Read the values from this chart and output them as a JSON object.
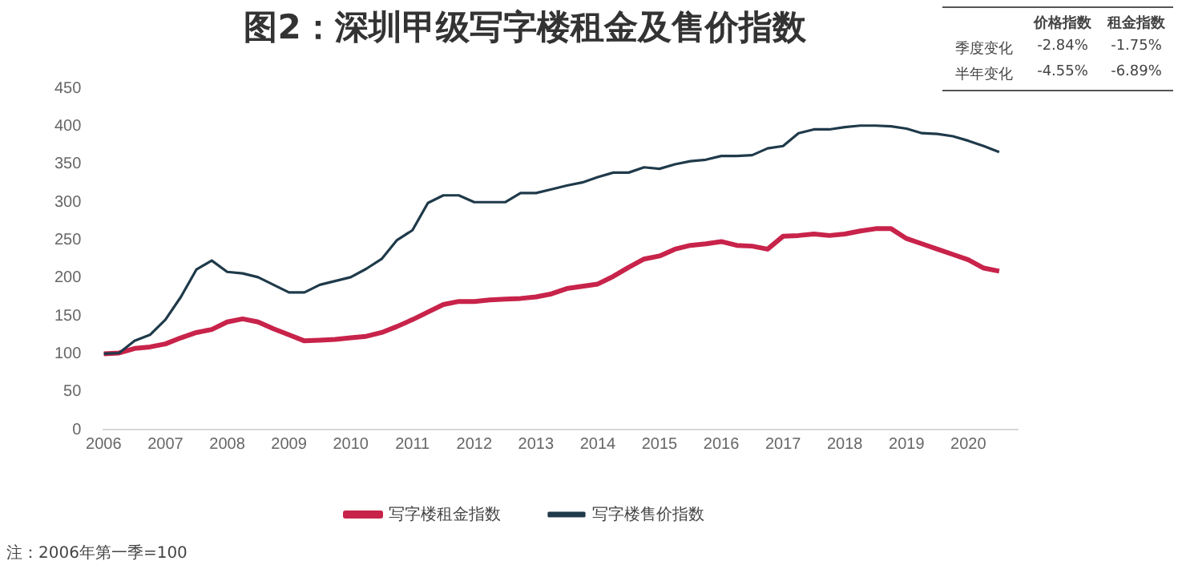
{
  "chart_data": {
    "type": "line",
    "title": "图2：深圳甲级写字楼租金及售价指数",
    "x": [
      2006,
      2006.25,
      2006.5,
      2006.75,
      2007,
      2007.25,
      2007.5,
      2007.75,
      2008,
      2008.25,
      2008.5,
      2008.75,
      2009,
      2009.25,
      2009.5,
      2009.75,
      2010,
      2010.25,
      2010.5,
      2010.75,
      2011,
      2011.25,
      2011.5,
      2011.75,
      2012,
      2012.25,
      2012.5,
      2012.75,
      2013,
      2013.25,
      2013.5,
      2013.75,
      2014,
      2014.25,
      2014.5,
      2014.75,
      2015,
      2015.25,
      2015.5,
      2015.75,
      2016,
      2016.25,
      2016.5,
      2016.75,
      2017,
      2017.25,
      2017.5,
      2017.75,
      2018,
      2018.25,
      2018.5,
      2018.75,
      2019,
      2019.25,
      2019.5,
      2019.75,
      2020,
      2020.25,
      2020.5
    ],
    "series": [
      {
        "name": "写字楼租金指数",
        "color": "#c8234a",
        "values": [
          100,
          101,
          107,
          109,
          113,
          121,
          128,
          132,
          142,
          146,
          142,
          133,
          125,
          117,
          118,
          119,
          121,
          123,
          128,
          136,
          145,
          155,
          165,
          169,
          169,
          171,
          172,
          173,
          175,
          179,
          186,
          189,
          192,
          202,
          214,
          225,
          229,
          238,
          243,
          245,
          248,
          243,
          242,
          238,
          255,
          256,
          258,
          256,
          258,
          262,
          265,
          265,
          252,
          245,
          238,
          231,
          224,
          213,
          209
        ]
      },
      {
        "name": "写字楼售价指数",
        "color": "#1f3a4a",
        "values": [
          100,
          101,
          117,
          125,
          145,
          175,
          211,
          223,
          208,
          206,
          201,
          191,
          181,
          181,
          191,
          196,
          201,
          212,
          225,
          250,
          263,
          299,
          309,
          309,
          300,
          300,
          300,
          312,
          312,
          317,
          322,
          326,
          333,
          339,
          339,
          346,
          344,
          350,
          354,
          356,
          361,
          361,
          362,
          371,
          374,
          391,
          396,
          396,
          399,
          401,
          401,
          400,
          397,
          391,
          390,
          387,
          381,
          374,
          366
        ]
      }
    ],
    "xlim": [
      2006,
      2020.8
    ],
    "xticks": [
      2006,
      2007,
      2008,
      2009,
      2010,
      2011,
      2012,
      2013,
      2014,
      2015,
      2016,
      2017,
      2018,
      2019,
      2020
    ],
    "ylim": [
      0,
      450
    ],
    "yticks": [
      0,
      50,
      100,
      150,
      200,
      250,
      300,
      350,
      400,
      450
    ],
    "grid": false,
    "legend": "bottom",
    "marker": "none",
    "line_style": "solid",
    "annotations": [
      "注：2006年第一季=100",
      "价格指数",
      "租金指数",
      "季度变化",
      "-2.84%",
      "-1.75%",
      "半年变化",
      "-4.55%",
      "-6.89%"
    ]
  }
}
